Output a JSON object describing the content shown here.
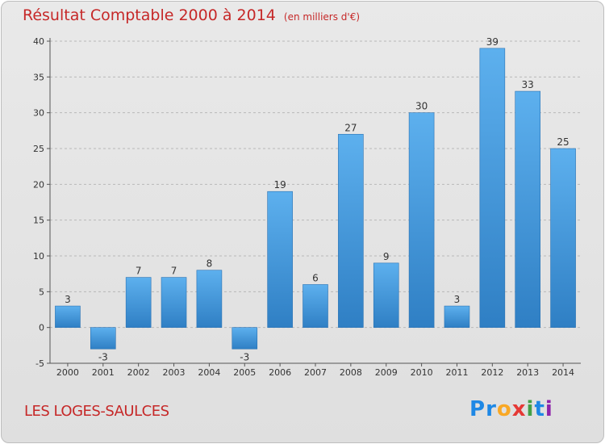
{
  "title": "Résultat Comptable 2000 à 2014",
  "subtitle": "(en milliers d'€)",
  "place": "LES LOGES-SAULCES",
  "logo": {
    "letters": [
      "P",
      "r",
      "o",
      "x",
      "i",
      "t",
      "i"
    ],
    "colors": [
      "#1e88e5",
      "#1e88e5",
      "#f9a825",
      "#e53935",
      "#43a047",
      "#1e88e5",
      "#8e24aa"
    ]
  },
  "colors": {
    "bar": "#3f95d8",
    "title": "#c62828"
  },
  "chart_data": {
    "type": "bar",
    "categories": [
      "2000",
      "2001",
      "2002",
      "2003",
      "2004",
      "2005",
      "2006",
      "2007",
      "2008",
      "2009",
      "2010",
      "2011",
      "2012",
      "2013",
      "2014"
    ],
    "values": [
      3,
      -3,
      7,
      7,
      8,
      -3,
      19,
      6,
      27,
      9,
      30,
      3,
      39,
      33,
      25
    ],
    "ylim": [
      -5,
      40
    ],
    "yticks": [
      -5,
      0,
      5,
      10,
      15,
      20,
      25,
      30,
      35,
      40
    ],
    "grid": "horizontal dashed"
  }
}
